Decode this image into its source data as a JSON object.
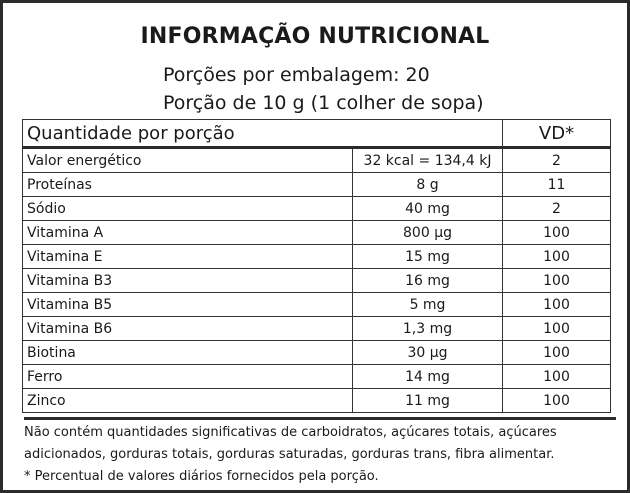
{
  "label": {
    "title": "INFORMAÇÃO NUTRICIONAL",
    "servings_per_package": "Porções por embalagem: 20",
    "serving_size": "Porção de 10 g (1 colher de sopa)",
    "header": {
      "quantity": "Quantidade por porção",
      "vd": "VD*"
    },
    "rows": [
      {
        "nutrient": "Valor energético",
        "amount": "32 kcal = 134,4 kJ",
        "vd": "2"
      },
      {
        "nutrient": "Proteínas",
        "amount": "8 g",
        "vd": "11"
      },
      {
        "nutrient": "Sódio",
        "amount": "40 mg",
        "vd": "2"
      },
      {
        "nutrient": "Vitamina A",
        "amount": "800 µg",
        "vd": "100"
      },
      {
        "nutrient": "Vitamina E",
        "amount": "15 mg",
        "vd": "100"
      },
      {
        "nutrient": "Vitamina B3",
        "amount": "16 mg",
        "vd": "100"
      },
      {
        "nutrient": "Vitamina B5",
        "amount": "5 mg",
        "vd": "100"
      },
      {
        "nutrient": "Vitamina B6",
        "amount": "1,3  mg",
        "vd": "100"
      },
      {
        "nutrient": "Biotina",
        "amount": "30 µg",
        "vd": "100"
      },
      {
        "nutrient": "Ferro",
        "amount": "14 mg",
        "vd": "100"
      },
      {
        "nutrient": "Zinco",
        "amount": "11 mg",
        "vd": "100"
      }
    ],
    "footnote_line1": "Não contém quantidades significativas de carboidratos, açúcares totais, açúcares",
    "footnote_line2": "adicionados, gorduras totais, gorduras saturadas, gorduras trans, fibra alimentar.",
    "footnote_vd": "* Percentual de valores diários fornecidos pela porção."
  }
}
